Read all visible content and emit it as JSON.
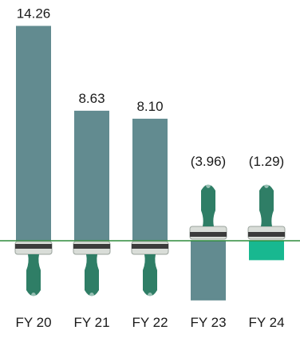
{
  "chart_data": {
    "type": "bar",
    "categories": [
      "FY 20",
      "FY 21",
      "FY 22",
      "FY 23",
      "FY 24"
    ],
    "values": [
      14.26,
      8.63,
      8.1,
      -3.96,
      -1.29
    ],
    "value_labels": [
      "14.26",
      "8.63",
      "8.10",
      "(3.96)",
      "(1.29)"
    ],
    "title": "",
    "xlabel": "",
    "ylabel": "",
    "grid": false,
    "colors": {
      "bar": "#628b90",
      "baseline": "#2e8b3c",
      "brush_handle": "#2f7e66",
      "brush_ferrule": "#d9ddd8",
      "brush_band": "#3b3b3b",
      "highlight": "#18b890"
    }
  }
}
